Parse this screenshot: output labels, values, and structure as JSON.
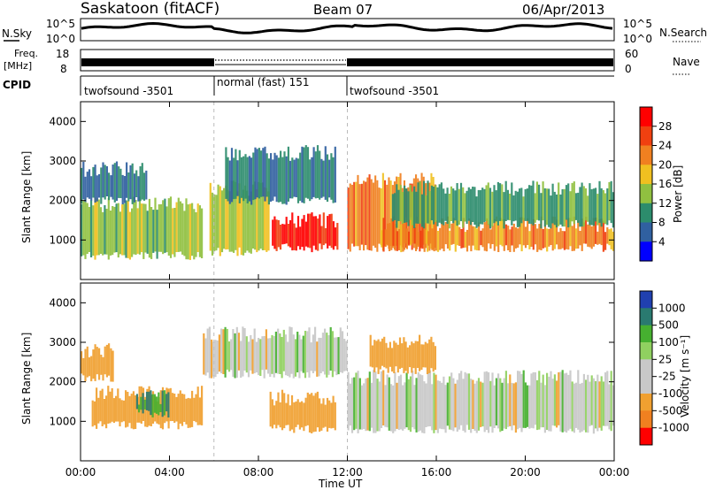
{
  "header": {
    "title": "Saskatoon (fitACF)",
    "beam": "Beam 07",
    "date": "06/Apr/2013"
  },
  "panels": {
    "nsky": {
      "label": "N.Sky",
      "left_ticks": [
        "10^5",
        "10^0"
      ],
      "right_ticks": [
        "10^5",
        "10^0"
      ],
      "right_label": "N.Search"
    },
    "freq": {
      "left_label_1": "Freq.",
      "left_label_2": "[MHz]",
      "left_ticks": [
        "18",
        "8"
      ],
      "right_ticks": [
        "60",
        "0"
      ],
      "right_label": "Nave"
    },
    "cpid": {
      "label": "CPID",
      "segments": [
        {
          "name": "twofsound -3501",
          "start": "00:00",
          "end": "06:00"
        },
        {
          "name": "normal (fast) 151",
          "start": "06:00",
          "end": "12:00"
        },
        {
          "name": "twofsound -3501",
          "start": "12:00",
          "end": "24:00"
        }
      ]
    }
  },
  "colorbars": {
    "power": {
      "label": "Power [dB]",
      "ticks": [
        "28",
        "24",
        "20",
        "16",
        "12",
        "8",
        "4"
      ],
      "colors": [
        "#ff0000",
        "#f04010",
        "#f08020",
        "#f0c020",
        "#90c040",
        "#2c8c6c",
        "#3060a0",
        "#0000ff"
      ]
    },
    "velocity": {
      "label": "Velocity [m s⁻¹]",
      "ticks": [
        "1000",
        "500",
        "100",
        "25",
        "-25",
        "-100",
        "-500",
        "-1000"
      ],
      "colors": [
        "#2040b0",
        "#2a7a70",
        "#46b030",
        "#90d060",
        "#c8c8c8",
        "#c8c8c8",
        "#f0a030",
        "#f08020",
        "#ff0000"
      ]
    }
  },
  "axis": {
    "xlabel": "Time UT",
    "ylabel": "Slant Range [km]",
    "xticks": [
      "00:00",
      "04:00",
      "08:00",
      "12:00",
      "16:00",
      "20:00",
      "00:00"
    ],
    "yticks": [
      "1000",
      "2000",
      "3000",
      "4000"
    ]
  },
  "chart_data": [
    {
      "type": "heatmap",
      "title": "Power [dB]",
      "xlabel": "Time UT",
      "ylabel": "Slant Range [km]",
      "xlim": [
        0,
        24
      ],
      "ylim": [
        0,
        4500
      ],
      "clim": [
        0,
        30
      ],
      "series": [
        {
          "start": 0.0,
          "end": 5.5,
          "low": 600,
          "high": 1900,
          "power": 14
        },
        {
          "start": 0.0,
          "end": 3.0,
          "low": 2000,
          "high": 2800,
          "power": 8
        },
        {
          "start": 5.8,
          "end": 8.5,
          "low": 700,
          "high": 2300,
          "power": 16
        },
        {
          "start": 8.6,
          "end": 11.6,
          "low": 800,
          "high": 1500,
          "power": 29
        },
        {
          "start": 6.5,
          "end": 11.5,
          "low": 2000,
          "high": 3200,
          "power": 9
        },
        {
          "start": 12.0,
          "end": 16.0,
          "low": 800,
          "high": 2500,
          "power": 22
        },
        {
          "start": 13.5,
          "end": 24.0,
          "low": 800,
          "high": 1400,
          "power": 22
        },
        {
          "start": 14.0,
          "end": 24.0,
          "low": 1400,
          "high": 2300,
          "power": 11
        }
      ]
    },
    {
      "type": "heatmap",
      "title": "Velocity [m s-1]",
      "xlabel": "Time UT",
      "ylabel": "Slant Range [km]",
      "xlim": [
        0,
        24
      ],
      "ylim": [
        0,
        4500
      ],
      "clim": [
        -1000,
        1000
      ],
      "series": [
        {
          "start": 0.0,
          "end": 1.5,
          "low": 2100,
          "high": 2800,
          "velocity": -200
        },
        {
          "start": 0.5,
          "end": 5.5,
          "low": 900,
          "high": 1700,
          "velocity": -150
        },
        {
          "start": 2.5,
          "end": 4.0,
          "low": 1200,
          "high": 1600,
          "velocity": 300
        },
        {
          "start": 8.5,
          "end": 11.5,
          "low": 800,
          "high": 1600,
          "velocity": -200
        },
        {
          "start": 5.5,
          "end": 12.0,
          "low": 2200,
          "high": 3200,
          "velocity": 0
        },
        {
          "start": 12.0,
          "end": 24.0,
          "low": 800,
          "high": 2100,
          "velocity": 0
        },
        {
          "start": 13.0,
          "end": 16.0,
          "low": 2300,
          "high": 3000,
          "velocity": -200
        }
      ]
    }
  ]
}
